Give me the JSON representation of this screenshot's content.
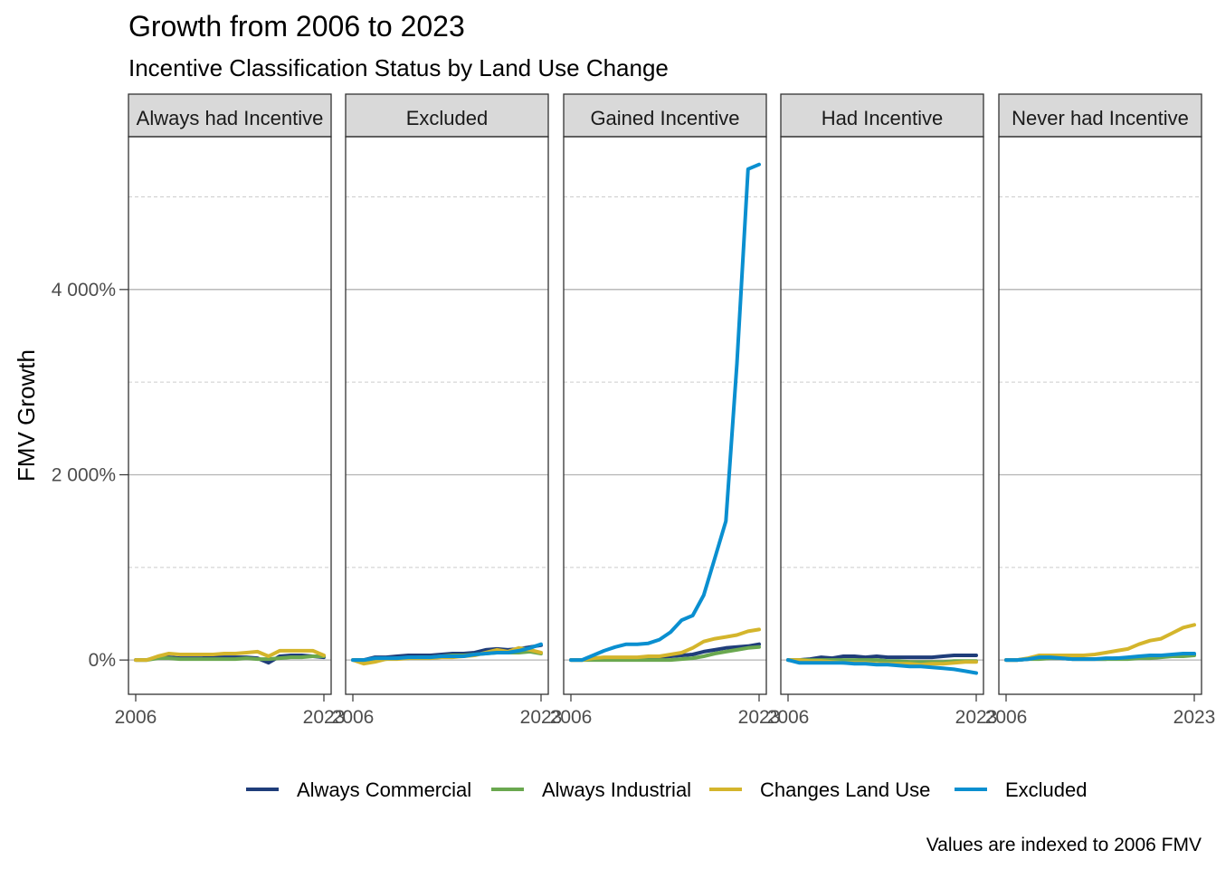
{
  "chart_data": {
    "type": "line",
    "title": "Growth from 2006 to 2023",
    "subtitle": "Incentive Classification Status by Land Use Change",
    "ylabel": "FMV Growth",
    "xlabel": "",
    "caption": "Values are indexed to 2006 FMV",
    "x": [
      2006,
      2007,
      2008,
      2009,
      2010,
      2011,
      2012,
      2013,
      2014,
      2015,
      2016,
      2017,
      2018,
      2019,
      2020,
      2021,
      2022,
      2023
    ],
    "x_tick_labels": [
      "2006",
      "2023"
    ],
    "y_tick_values": [
      0,
      2000,
      4000
    ],
    "y_tick_labels": [
      "0%",
      "2 000%",
      "4 000%"
    ],
    "ylim": [
      -370,
      5650
    ],
    "grid": true,
    "legend_position": "bottom",
    "series_styles": [
      {
        "name": "Always Commercial",
        "color": "#1f3d7a"
      },
      {
        "name": "Always Industrial",
        "color": "#6aa84f"
      },
      {
        "name": "Changes Land Use",
        "color": "#d4b52c"
      },
      {
        "name": "Excluded",
        "color": "#0a8fd0"
      }
    ],
    "panels": [
      {
        "label": "Always had Incentive",
        "series": [
          {
            "name": "Always Commercial",
            "values": [
              0,
              0,
              30,
              30,
              20,
              20,
              20,
              30,
              30,
              30,
              30,
              20,
              -30,
              40,
              50,
              50,
              40,
              30
            ]
          },
          {
            "name": "Always Industrial",
            "values": [
              0,
              0,
              20,
              20,
              10,
              10,
              10,
              10,
              10,
              10,
              20,
              10,
              10,
              20,
              30,
              30,
              40,
              40
            ]
          },
          {
            "name": "Changes Land Use",
            "values": [
              0,
              0,
              40,
              70,
              60,
              60,
              60,
              60,
              70,
              70,
              80,
              90,
              40,
              100,
              100,
              100,
              100,
              50
            ]
          }
        ]
      },
      {
        "label": "Excluded",
        "series": [
          {
            "name": "Always Commercial",
            "values": [
              0,
              0,
              30,
              30,
              40,
              50,
              50,
              50,
              60,
              70,
              70,
              80,
              110,
              120,
              110,
              120,
              140,
              160
            ]
          },
          {
            "name": "Always Industrial",
            "values": [
              0,
              0,
              10,
              10,
              20,
              20,
              30,
              30,
              40,
              50,
              50,
              60,
              70,
              80,
              80,
              80,
              90,
              70
            ]
          },
          {
            "name": "Changes Land Use",
            "values": [
              0,
              -40,
              -20,
              10,
              10,
              20,
              20,
              20,
              30,
              30,
              40,
              50,
              80,
              110,
              90,
              130,
              110,
              80
            ]
          },
          {
            "name": "Excluded",
            "values": [
              0,
              0,
              20,
              20,
              20,
              30,
              30,
              30,
              40,
              40,
              40,
              60,
              70,
              80,
              80,
              100,
              130,
              170
            ]
          }
        ]
      },
      {
        "label": "Gained Incentive",
        "series": [
          {
            "name": "Always Commercial",
            "values": [
              0,
              0,
              10,
              10,
              10,
              10,
              10,
              20,
              30,
              40,
              50,
              60,
              90,
              110,
              130,
              140,
              150,
              170
            ]
          },
          {
            "name": "Always Industrial",
            "values": [
              0,
              0,
              0,
              0,
              0,
              0,
              0,
              0,
              0,
              0,
              10,
              20,
              40,
              70,
              90,
              110,
              130,
              140
            ]
          },
          {
            "name": "Changes Land Use",
            "values": [
              0,
              0,
              20,
              30,
              30,
              30,
              30,
              40,
              40,
              60,
              80,
              130,
              200,
              230,
              250,
              270,
              310,
              330
            ]
          },
          {
            "name": "Excluded",
            "values": [
              0,
              0,
              50,
              100,
              140,
              170,
              170,
              180,
              220,
              300,
              430,
              480,
              700,
              1100,
              1500,
              3200,
              5300,
              5350
            ]
          }
        ]
      },
      {
        "label": "Had Incentive",
        "series": [
          {
            "name": "Always Commercial",
            "values": [
              0,
              0,
              10,
              30,
              20,
              40,
              40,
              30,
              40,
              30,
              30,
              30,
              30,
              30,
              40,
              50,
              50,
              50
            ]
          },
          {
            "name": "Always Industrial",
            "values": [
              0,
              0,
              0,
              0,
              0,
              0,
              0,
              0,
              0,
              -10,
              -10,
              -20,
              -20,
              -20,
              -20,
              -10,
              -10,
              -10
            ]
          },
          {
            "name": "Changes Land Use",
            "values": [
              0,
              0,
              -10,
              -10,
              -20,
              -30,
              -30,
              -30,
              -40,
              -40,
              -40,
              -40,
              -50,
              -40,
              -40,
              -30,
              -20,
              -20
            ]
          },
          {
            "name": "Excluded",
            "values": [
              0,
              -30,
              -30,
              -30,
              -30,
              -30,
              -40,
              -40,
              -50,
              -50,
              -60,
              -70,
              -70,
              -80,
              -90,
              -100,
              -120,
              -140
            ]
          }
        ]
      },
      {
        "label": "Never had Incentive",
        "series": [
          {
            "name": "Always Commercial",
            "values": [
              0,
              0,
              10,
              20,
              20,
              20,
              10,
              10,
              10,
              10,
              20,
              20,
              30,
              40,
              40,
              40,
              50,
              60
            ]
          },
          {
            "name": "Always Industrial",
            "values": [
              0,
              0,
              10,
              10,
              20,
              20,
              10,
              10,
              10,
              10,
              10,
              10,
              20,
              20,
              30,
              40,
              40,
              50
            ]
          },
          {
            "name": "Changes Land Use",
            "values": [
              0,
              0,
              20,
              50,
              50,
              50,
              50,
              50,
              60,
              80,
              100,
              120,
              170,
              210,
              230,
              290,
              350,
              380
            ]
          },
          {
            "name": "Excluded",
            "values": [
              0,
              0,
              10,
              30,
              30,
              20,
              10,
              10,
              10,
              20,
              20,
              30,
              40,
              50,
              50,
              60,
              70,
              70
            ]
          }
        ]
      }
    ]
  }
}
